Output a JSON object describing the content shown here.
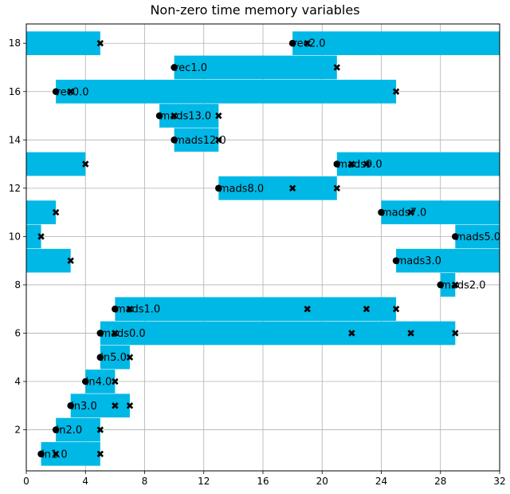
{
  "chart_data": {
    "type": "bar",
    "orientation": "horizontal-gantt",
    "title": "Non-zero time memory variables",
    "xlabel": "",
    "ylabel": "",
    "xlim": [
      0,
      32
    ],
    "ylim": [
      0.3,
      18.8
    ],
    "xticks": [
      "0",
      "4",
      "8",
      "12",
      "16",
      "20",
      "24",
      "28",
      "32"
    ],
    "yticks": [
      "2",
      "4",
      "6",
      "8",
      "10",
      "12",
      "14",
      "16",
      "18"
    ],
    "grid": true,
    "bar_color": "#00b8e6",
    "bars": [
      {
        "y": 1,
        "start": 1,
        "end": 5,
        "label": "in1.0",
        "start_marker": 1,
        "x_markers": [
          2,
          5
        ]
      },
      {
        "y": 2,
        "start": 2,
        "end": 5,
        "label": "in2.0",
        "start_marker": 2,
        "x_markers": [
          5
        ]
      },
      {
        "y": 3,
        "start": 3,
        "end": 7,
        "label": "in3.0",
        "start_marker": 3,
        "x_markers": [
          6,
          7
        ]
      },
      {
        "y": 4,
        "start": 4,
        "end": 6,
        "label": "in4.0",
        "start_marker": 4,
        "x_markers": [
          6
        ]
      },
      {
        "y": 5,
        "start": 5,
        "end": 7,
        "label": "in5.0",
        "start_marker": 5,
        "x_markers": [
          7
        ]
      },
      {
        "y": 6,
        "start": 5,
        "end": 29,
        "label": "mads0.0",
        "start_marker": 5,
        "x_markers": [
          6,
          22,
          26,
          29
        ]
      },
      {
        "y": 7,
        "start": 6,
        "end": 25,
        "label": "mads1.0",
        "start_marker": 6,
        "x_markers": [
          7,
          19,
          23,
          25
        ]
      },
      {
        "y": 8,
        "start": 28,
        "end": 29,
        "label": "mads2.0",
        "start_marker": 28,
        "x_markers": [
          29
        ]
      },
      {
        "y": 9,
        "start": 25,
        "end": 32,
        "label": "mads3.0",
        "start_marker": 25,
        "x_markers": []
      },
      {
        "y": 9,
        "start": 0,
        "end": 3,
        "label": "",
        "start_marker": null,
        "x_markers": [
          3
        ]
      },
      {
        "y": 10,
        "start": 29,
        "end": 32,
        "label": "mads5.0",
        "start_marker": 29,
        "x_markers": []
      },
      {
        "y": 10,
        "start": 0,
        "end": 1,
        "label": "",
        "start_marker": null,
        "x_markers": [
          1
        ]
      },
      {
        "y": 11,
        "start": 24,
        "end": 32,
        "label": "mads7.0",
        "start_marker": 24,
        "x_markers": [
          26
        ]
      },
      {
        "y": 11,
        "start": 0,
        "end": 2,
        "label": "",
        "start_marker": null,
        "x_markers": [
          2
        ]
      },
      {
        "y": 12,
        "start": 13,
        "end": 21,
        "label": "mads8.0",
        "start_marker": 13,
        "x_markers": [
          18,
          21
        ]
      },
      {
        "y": 13,
        "start": 21,
        "end": 32,
        "label": "mads9.0",
        "start_marker": 21,
        "x_markers": [
          22,
          23
        ]
      },
      {
        "y": 13,
        "start": 0,
        "end": 4,
        "label": "",
        "start_marker": null,
        "x_markers": [
          4
        ]
      },
      {
        "y": 14,
        "start": 10,
        "end": 13,
        "label": "mads12.0",
        "start_marker": 10,
        "x_markers": [
          13
        ]
      },
      {
        "y": 15,
        "start": 9,
        "end": 13,
        "label": "mads13.0",
        "start_marker": 9,
        "x_markers": [
          10,
          13
        ]
      },
      {
        "y": 16,
        "start": 2,
        "end": 25,
        "label": "rec0.0",
        "start_marker": 2,
        "x_markers": [
          3,
          25
        ]
      },
      {
        "y": 17,
        "start": 10,
        "end": 21,
        "label": "rec1.0",
        "start_marker": 10,
        "x_markers": [
          21
        ]
      },
      {
        "y": 18,
        "start": 18,
        "end": 32,
        "label": "rec2.0",
        "start_marker": 18,
        "x_markers": [
          19
        ]
      },
      {
        "y": 18,
        "start": 0,
        "end": 5,
        "label": "",
        "start_marker": null,
        "x_markers": [
          5
        ]
      }
    ]
  }
}
